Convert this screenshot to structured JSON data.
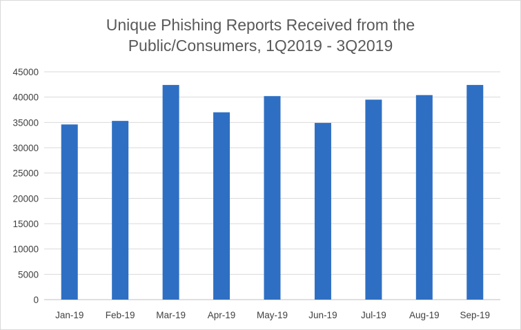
{
  "chart_data": {
    "type": "bar",
    "title_lines": [
      "Unique Phishing Reports Received from the",
      "Public/Consumers, 1Q2019 - 3Q2019"
    ],
    "xlabel": "",
    "ylabel": "",
    "categories": [
      "Jan-19",
      "Feb-19",
      "Mar-19",
      "Apr-19",
      "May-19",
      "Jun-19",
      "Jul-19",
      "Aug-19",
      "Sep-19"
    ],
    "values": [
      34600,
      35300,
      42400,
      37000,
      40200,
      34900,
      39500,
      40400,
      42400
    ],
    "ylim": [
      0,
      45000
    ],
    "yticks": [
      0,
      5000,
      10000,
      15000,
      20000,
      25000,
      30000,
      35000,
      40000,
      45000
    ],
    "grid": true,
    "legend": "none",
    "colors": {
      "bar": "#2E6FC3",
      "grid": "#d9d9d9",
      "axis": "#bfbfbf",
      "text": "#404040",
      "title": "#595959"
    }
  }
}
